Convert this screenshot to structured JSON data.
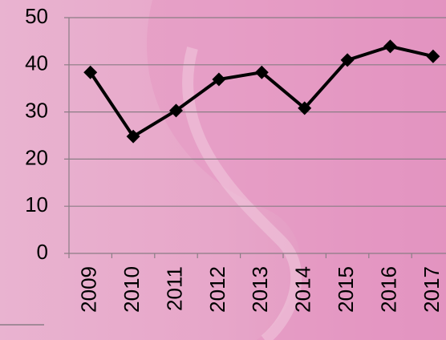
{
  "chart_data": {
    "type": "line",
    "categories": [
      "2009",
      "2010",
      "2011",
      "2012",
      "2013",
      "2014",
      "2015",
      "2016",
      "2017"
    ],
    "values": [
      38.4,
      24.8,
      30.3,
      36.9,
      38.4,
      30.8,
      41,
      43.9,
      41.8
    ],
    "color": "#000000",
    "ylim": [
      0,
      50
    ],
    "yticks": [
      0,
      10,
      20,
      30,
      40,
      50
    ],
    "grid": true
  }
}
